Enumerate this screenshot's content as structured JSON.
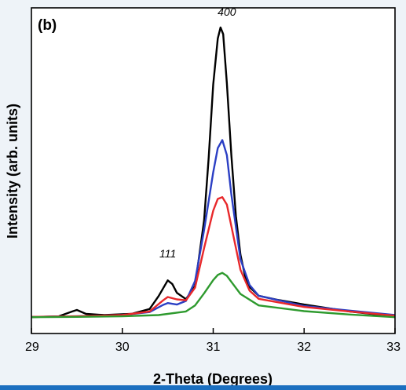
{
  "panel_label": "(b)",
  "chart_data": {
    "type": "line",
    "xlabel": "2-Theta (Degrees)",
    "ylabel": "Intensity (arb. units)",
    "xlim": [
      29,
      33
    ],
    "x_ticks": [
      "29",
      "30",
      "31",
      "32",
      "33"
    ],
    "y_ticks": [],
    "grid": false,
    "annotations": [
      {
        "text": "400",
        "x": 31.15,
        "y": 99
      },
      {
        "text": "111",
        "x": 30.5,
        "y": 19
      }
    ],
    "series": [
      {
        "color": "#000000",
        "x": [
          29.0,
          29.3,
          29.45,
          29.5,
          29.6,
          29.8,
          30.1,
          30.3,
          30.4,
          30.45,
          30.5,
          30.55,
          30.6,
          30.7,
          30.8,
          30.9,
          30.95,
          31.0,
          31.05,
          31.08,
          31.11,
          31.15,
          31.2,
          31.25,
          31.3,
          31.35,
          31.4,
          31.5,
          31.7,
          32.0,
          32.5,
          32.8,
          33.0
        ],
        "y": [
          0.2,
          0.5,
          2.1,
          2.6,
          1.3,
          0.9,
          1.3,
          2.9,
          7.2,
          9.8,
          12.4,
          11.2,
          8.3,
          6.2,
          10.5,
          32.3,
          52.9,
          77.3,
          92.5,
          96.2,
          94.0,
          77.7,
          53.9,
          33.7,
          20.9,
          13.9,
          10.2,
          7.3,
          6.0,
          4.4,
          2.1,
          1.1,
          0.3
        ]
      },
      {
        "color": "#2b3fc4",
        "x": [
          29.0,
          29.5,
          30.0,
          30.3,
          30.45,
          30.5,
          30.6,
          30.7,
          30.8,
          30.9,
          31.0,
          31.05,
          31.1,
          31.15,
          31.2,
          31.3,
          31.4,
          31.5,
          32.0,
          32.5,
          33.0
        ],
        "y": [
          0.3,
          0.5,
          0.9,
          1.9,
          4.3,
          4.9,
          4.4,
          5.6,
          12.2,
          29.1,
          48.2,
          56.2,
          58.9,
          53.9,
          40.9,
          19.4,
          10.9,
          7.3,
          3.9,
          2.4,
          0.9
        ]
      },
      {
        "color": "#e8282b",
        "x": [
          29.0,
          29.5,
          30.0,
          30.3,
          30.45,
          30.5,
          30.6,
          30.7,
          30.8,
          30.9,
          31.0,
          31.05,
          31.1,
          31.15,
          31.2,
          31.3,
          31.4,
          31.5,
          32.0,
          32.5,
          33.0
        ],
        "y": [
          0.3,
          0.5,
          0.9,
          2.1,
          5.8,
          6.9,
          6.1,
          5.8,
          10.0,
          23.1,
          35.5,
          39.4,
          40.0,
          37.5,
          30.4,
          15.9,
          9.0,
          6.3,
          3.6,
          2.1,
          0.7
        ]
      },
      {
        "color": "#2e9a2e",
        "x": [
          29.0,
          29.5,
          30.0,
          30.4,
          30.7,
          30.8,
          30.9,
          31.0,
          31.05,
          31.1,
          31.15,
          31.2,
          31.3,
          31.5,
          32.0,
          32.5,
          33.0
        ],
        "y": [
          0.2,
          0.3,
          0.5,
          0.9,
          2.1,
          4.1,
          8.1,
          12.5,
          14.2,
          14.9,
          13.9,
          11.9,
          7.9,
          4.1,
          2.2,
          1.1,
          0.2
        ]
      }
    ]
  }
}
